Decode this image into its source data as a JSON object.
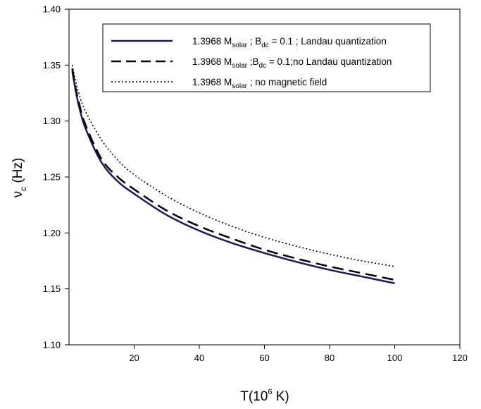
{
  "chart_data": {
    "type": "line",
    "title": "",
    "xlabel": {
      "main": "T(10",
      "sup": "6",
      "tail": " K)"
    },
    "ylabel": {
      "main": "ν",
      "sub": "c",
      "tail": " (Hz)"
    },
    "xlim": [
      0,
      120
    ],
    "ylim": [
      1.1,
      1.4
    ],
    "xticks": [
      "20",
      "40",
      "60",
      "80",
      "100",
      "120"
    ],
    "yticks": [
      "1.10",
      "1.15",
      "1.20",
      "1.25",
      "1.30",
      "1.35",
      "1.40"
    ],
    "grid": false,
    "legend_position": "top-right",
    "series": [
      {
        "label": {
          "a": "1.3968 M",
          "b": "solar",
          "c": " ; B",
          "d": "dc",
          "e": " = 0.1 ; Landau quantization"
        },
        "color": "#1a1a5e",
        "style": "solid",
        "x": [
          1,
          2,
          3,
          5,
          10,
          15,
          20,
          30,
          40,
          50,
          60,
          70,
          80,
          90,
          100
        ],
        "y": [
          1.345,
          1.328,
          1.314,
          1.294,
          1.263,
          1.246,
          1.235,
          1.216,
          1.202,
          1.191,
          1.182,
          1.174,
          1.167,
          1.161,
          1.155
        ]
      },
      {
        "label": {
          "a": "1.3968 M",
          "b": "solar",
          "c": " ;B",
          "d": "dc",
          "e": " = 0.1;no Landau quantization"
        },
        "color": "#000000",
        "style": "dashed",
        "x": [
          1,
          2,
          3,
          5,
          10,
          15,
          20,
          30,
          40,
          50,
          60,
          70,
          80,
          90,
          100
        ],
        "y": [
          1.347,
          1.33,
          1.317,
          1.297,
          1.266,
          1.25,
          1.239,
          1.22,
          1.206,
          1.195,
          1.185,
          1.177,
          1.17,
          1.164,
          1.158
        ]
      },
      {
        "label": {
          "a": "1.3968 M",
          "b": "solar",
          "c": " ; no magnetic field",
          "d": "",
          "e": ""
        },
        "color": "#000000",
        "style": "dotted",
        "x": [
          1,
          2,
          3,
          5,
          10,
          15,
          20,
          30,
          40,
          50,
          60,
          70,
          80,
          90,
          100
        ],
        "y": [
          1.35,
          1.336,
          1.325,
          1.309,
          1.283,
          1.265,
          1.252,
          1.233,
          1.218,
          1.206,
          1.196,
          1.188,
          1.181,
          1.175,
          1.17
        ]
      }
    ]
  }
}
